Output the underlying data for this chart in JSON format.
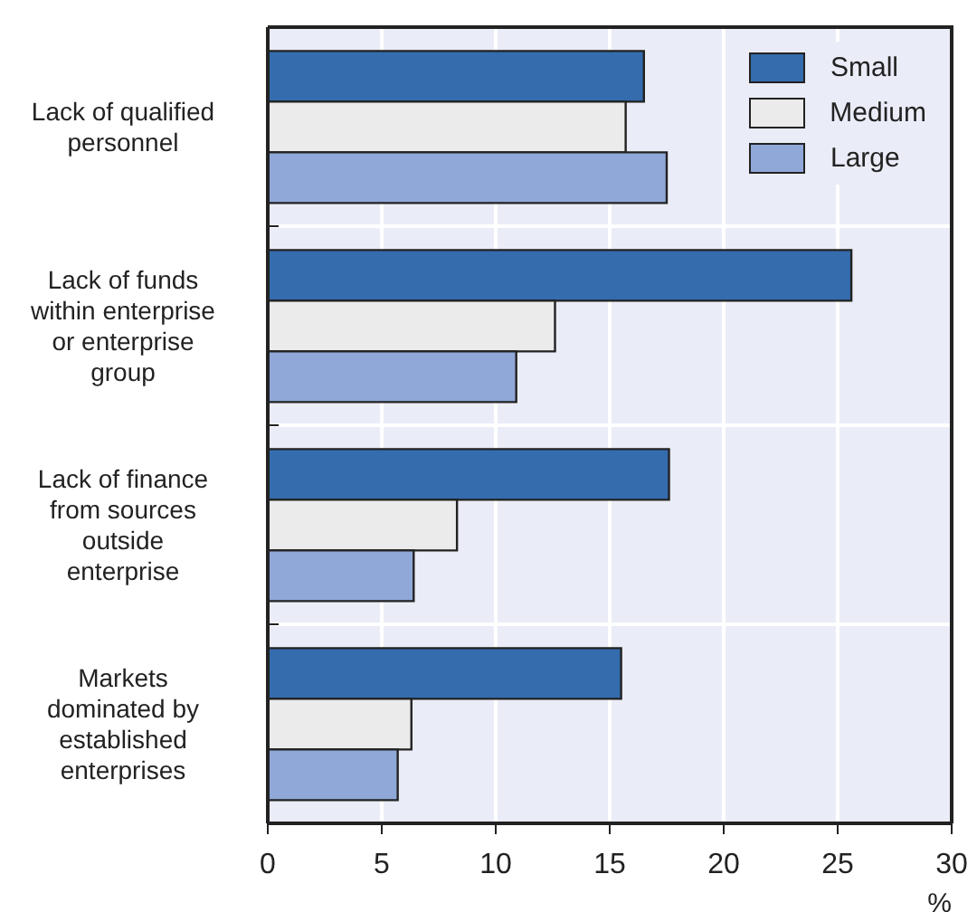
{
  "chart_data": {
    "type": "bar",
    "orientation": "horizontal",
    "categories": [
      "Lack of qualified personnel",
      "Lack of funds within enterprise or enterprise group",
      "Lack of finance from sources outside enterprise",
      "Markets dominated by established enterprises"
    ],
    "series": [
      {
        "name": "Small",
        "color": "#346cae",
        "values": [
          16.5,
          25.6,
          17.6,
          15.5
        ]
      },
      {
        "name": "Medium",
        "color": "#ebebeb",
        "values": [
          15.7,
          12.6,
          8.3,
          6.3
        ]
      },
      {
        "name": "Large",
        "color": "#90a8d8",
        "values": [
          17.5,
          10.9,
          6.4,
          5.7
        ]
      }
    ],
    "xlabel": "%",
    "xlim": [
      0,
      30
    ],
    "xticks": [
      0,
      5,
      10,
      15,
      20,
      25,
      30
    ],
    "grid": true,
    "legend": "top right"
  }
}
